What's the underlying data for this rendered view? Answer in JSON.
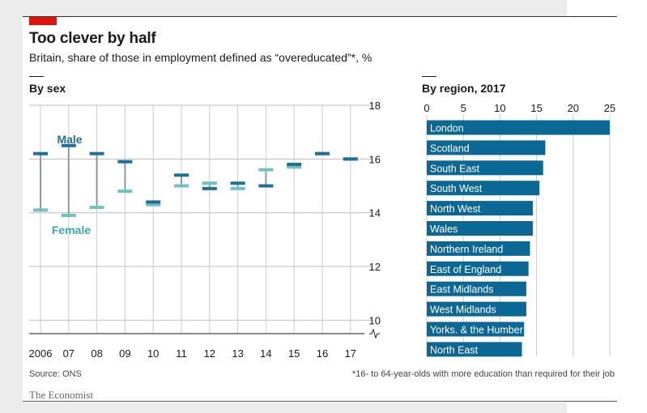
{
  "header": {
    "title": "Too clever by half",
    "subtitle": "Britain, share of those in employment defined as “overeducated”*, %"
  },
  "footer": {
    "source": "Source: ONS",
    "note": "*16- to 64-year-olds with more education than required for their job",
    "brand": "The Economist"
  },
  "colors": {
    "male": "#1f6f99",
    "female": "#6fc2c4",
    "connector": "#8a9ba5",
    "bar": "#0b6894",
    "grid": "#cccccc",
    "brand_red": "#e3120b"
  },
  "chart_data": [
    {
      "type": "dumbbell",
      "panel_title": "By sex",
      "categories": [
        "2006",
        "07",
        "08",
        "09",
        "10",
        "11",
        "12",
        "13",
        "14",
        "15",
        "16",
        "17"
      ],
      "series": [
        {
          "name": "Male",
          "values": [
            16.2,
            16.5,
            16.2,
            15.9,
            14.4,
            15.4,
            14.9,
            15.1,
            15.0,
            15.8,
            16.2,
            16.0
          ]
        },
        {
          "name": "Female",
          "values": [
            14.1,
            13.9,
            14.2,
            14.8,
            14.3,
            15.0,
            15.1,
            14.9,
            15.6,
            15.7,
            16.2,
            16.0
          ]
        }
      ],
      "ylim": [
        9.5,
        18
      ],
      "yticks": [
        10,
        12,
        14,
        16,
        18
      ],
      "axis_break": true,
      "yaxis_side": "right",
      "grid": "vertical and horizontal"
    },
    {
      "type": "bar",
      "orientation": "horizontal",
      "panel_title": "By region, 2017",
      "categories": [
        "London",
        "Scotland",
        "South East",
        "South West",
        "North West",
        "Wales",
        "Northern Ireland",
        "East of England",
        "East Midlands",
        "West Midlands",
        "Yorks. & the Humber",
        "North East"
      ],
      "values": [
        25.0,
        16.2,
        15.9,
        15.4,
        14.5,
        14.5,
        14.1,
        13.9,
        13.6,
        13.6,
        13.3,
        13.0
      ],
      "xlim": [
        0,
        25
      ],
      "xticks": [
        0,
        5,
        10,
        15,
        20,
        25
      ],
      "xaxis_side": "top",
      "grid": "vertical"
    }
  ]
}
